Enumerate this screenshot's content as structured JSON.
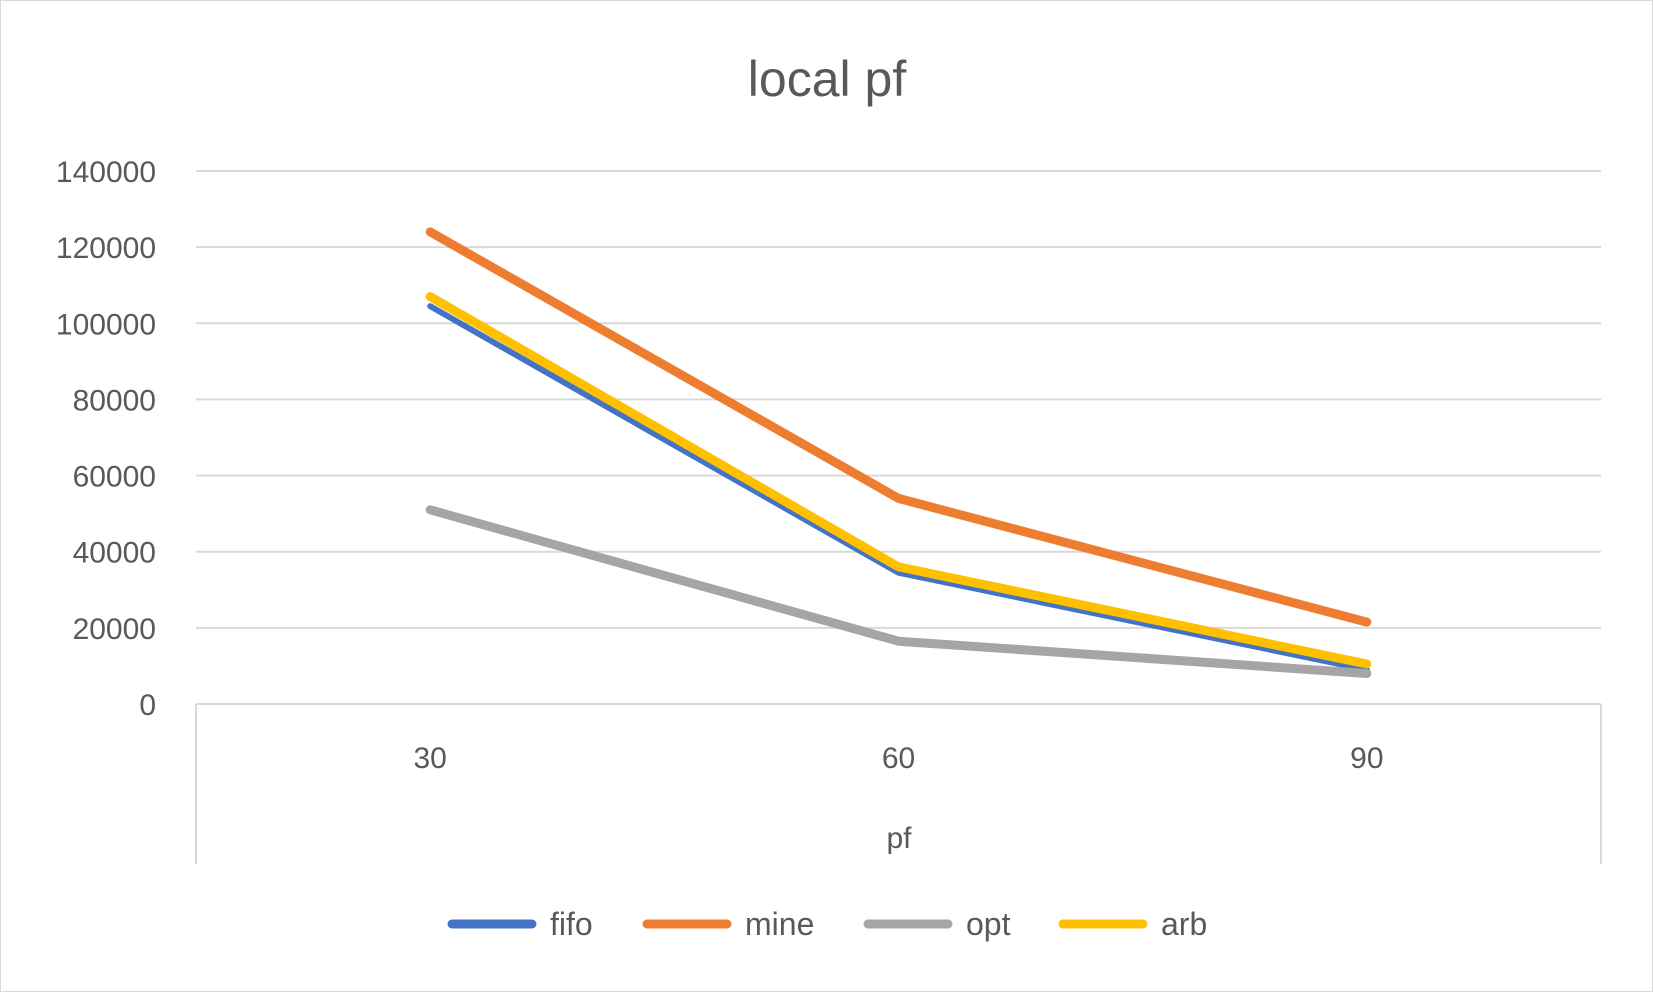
{
  "chart_data": {
    "type": "line",
    "title": "local pf",
    "xlabel": "pf",
    "ylabel": "",
    "categories": [
      "30",
      "60",
      "90"
    ],
    "ylim": [
      0,
      140000
    ],
    "yticks": [
      0,
      20000,
      40000,
      60000,
      80000,
      100000,
      120000,
      140000
    ],
    "grid": true,
    "legend_position": "bottom",
    "series": [
      {
        "name": "fifo",
        "values": [
          104500,
          34500,
          9000
        ],
        "color": "#4472c4"
      },
      {
        "name": "mine",
        "values": [
          124000,
          54000,
          21500
        ],
        "color": "#ed7d31"
      },
      {
        "name": "opt",
        "values": [
          51000,
          16500,
          8000
        ],
        "color": "#a5a5a5"
      },
      {
        "name": "arb",
        "values": [
          107000,
          36000,
          10500
        ],
        "color": "#ffc000"
      }
    ]
  }
}
